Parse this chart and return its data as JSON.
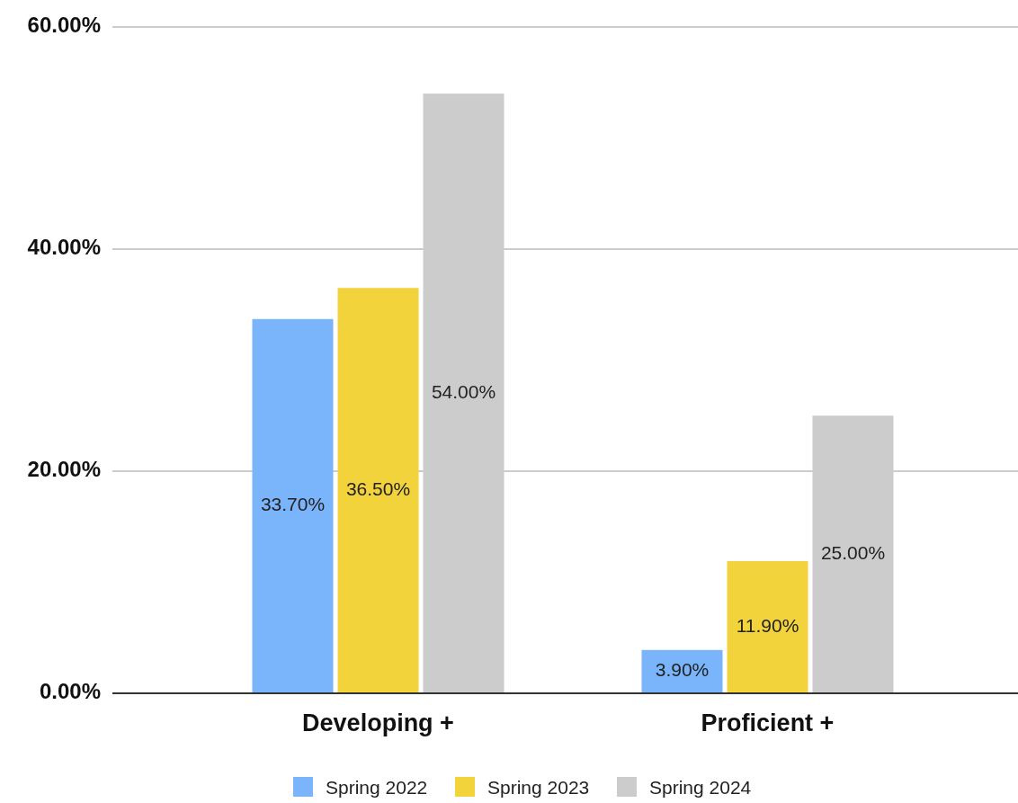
{
  "chart_data": {
    "type": "bar",
    "categories": [
      "Developing +",
      "Proficient +"
    ],
    "series": [
      {
        "name": "Spring 2022",
        "color": "#7ab4fb",
        "values": [
          33.7,
          3.9
        ],
        "value_labels": [
          "33.70%",
          "3.90%"
        ]
      },
      {
        "name": "Spring 2023",
        "color": "#f2d33c",
        "values": [
          36.5,
          11.9
        ],
        "value_labels": [
          "36.50%",
          "11.90%"
        ]
      },
      {
        "name": "Spring 2024",
        "color": "#cccccc",
        "values": [
          54,
          25
        ],
        "value_labels": [
          "54.00%",
          "25.00%"
        ]
      }
    ],
    "ylim": [
      0,
      60
    ],
    "yticks": [
      {
        "value": 0,
        "label": "0.00%"
      },
      {
        "value": 20,
        "label": "20.00%"
      },
      {
        "value": 40,
        "label": "40.00%"
      },
      {
        "value": 60,
        "label": "60.00%"
      }
    ],
    "grid": "y",
    "legend": "bottom"
  }
}
